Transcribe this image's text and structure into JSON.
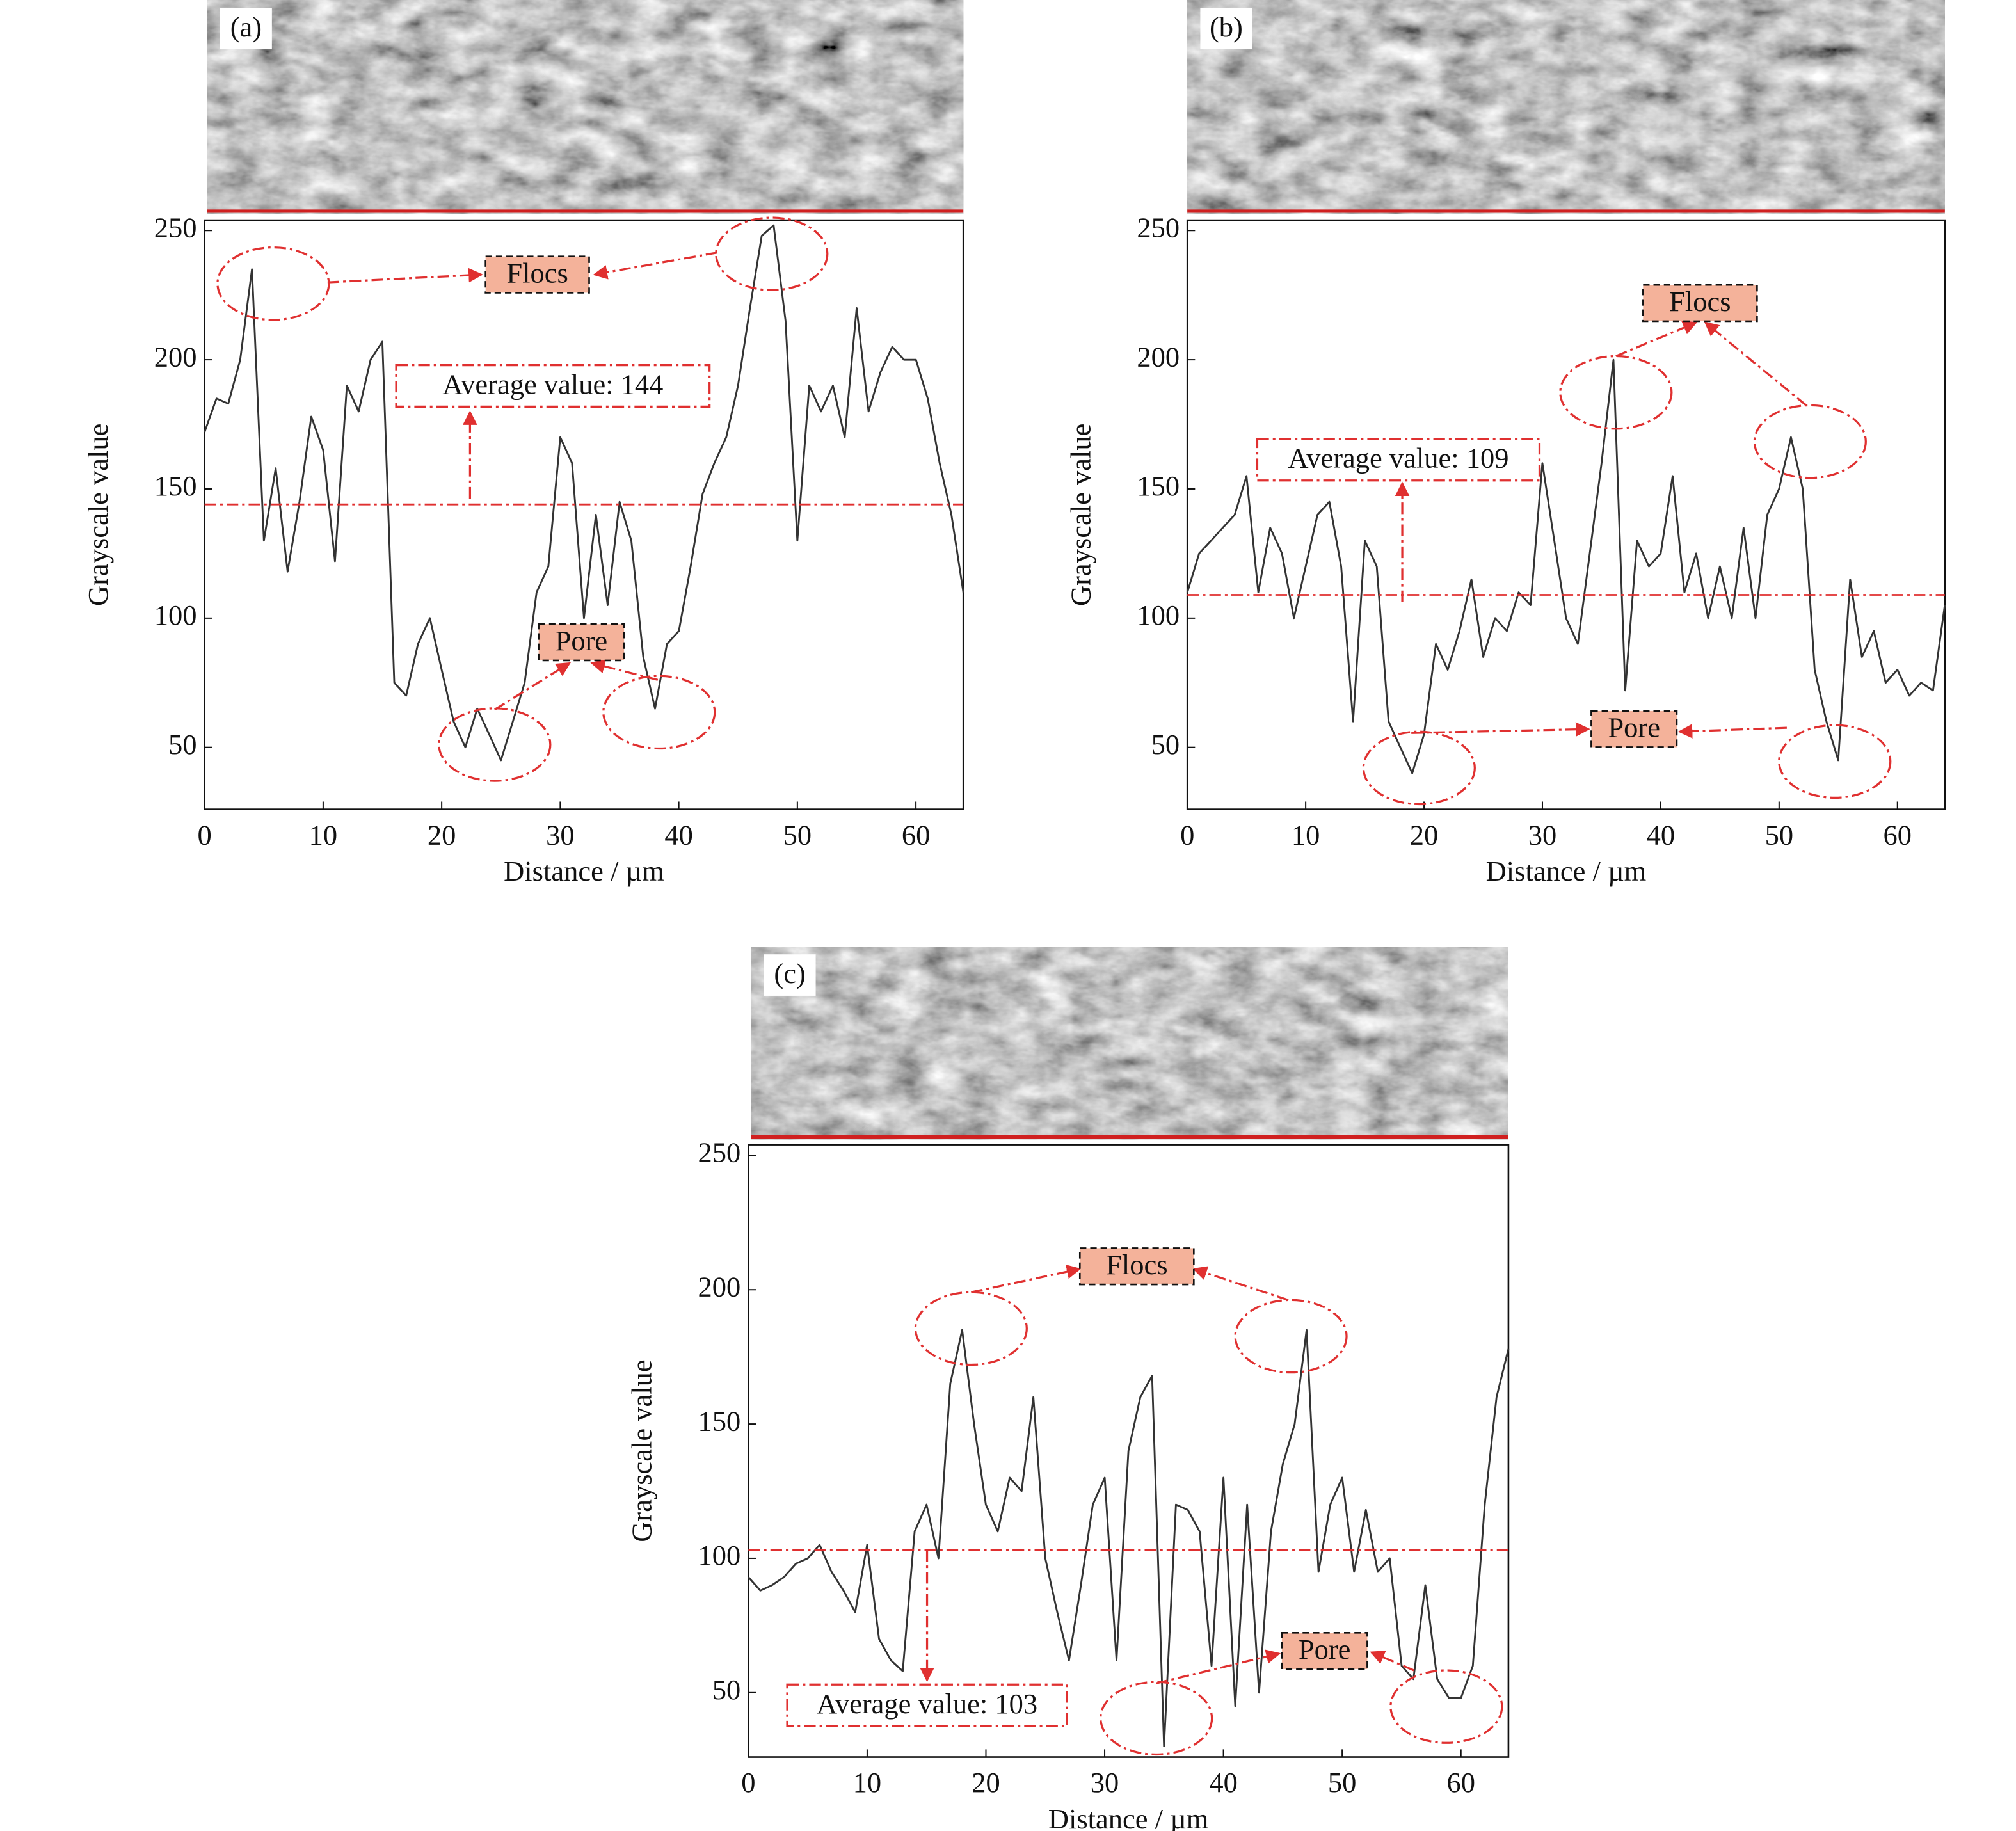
{
  "chart_data": [
    {
      "type": "line",
      "label": "(a)",
      "xlabel": "Distance / µm",
      "ylabel": "Grayscale value",
      "xlim": [
        0,
        64
      ],
      "ylim": [
        26,
        254
      ],
      "xticks": [
        0,
        10,
        20,
        30,
        40,
        50,
        60
      ],
      "yticks": [
        50,
        100,
        150,
        200,
        250
      ],
      "color": "#333333",
      "average_line": 144,
      "average_color": "#e03030",
      "annotations": [
        "Flocs",
        "Pore",
        "Average value: 144"
      ],
      "x": [
        0,
        1,
        2,
        3,
        4,
        5,
        6,
        7,
        8,
        9,
        10,
        11,
        12,
        13,
        14,
        15,
        16,
        17,
        18,
        19,
        20,
        21,
        22,
        23,
        24,
        25,
        26,
        27,
        28,
        29,
        30,
        31,
        32,
        33,
        34,
        35,
        36,
        37,
        38,
        39,
        40,
        41,
        42,
        43,
        44,
        45,
        46,
        47,
        48,
        49,
        50,
        51,
        52,
        53,
        54,
        55,
        56,
        57,
        58,
        59,
        60,
        61,
        62,
        63,
        64
      ],
      "values": [
        172,
        185,
        183,
        200,
        235,
        130,
        158,
        118,
        145,
        178,
        165,
        122,
        190,
        180,
        200,
        207,
        75,
        70,
        90,
        100,
        80,
        60,
        50,
        65,
        55,
        45,
        60,
        75,
        110,
        120,
        170,
        160,
        100,
        140,
        105,
        145,
        130,
        85,
        65,
        90,
        95,
        120,
        148,
        160,
        170,
        190,
        220,
        248,
        252,
        215,
        130,
        190,
        180,
        190,
        170,
        220,
        180,
        195,
        205,
        200,
        200,
        185,
        160,
        140,
        110
      ]
    },
    {
      "type": "line",
      "label": "(b)",
      "xlabel": "Distance / µm",
      "ylabel": "Grayscale value",
      "xlim": [
        0,
        64
      ],
      "ylim": [
        26,
        254
      ],
      "xticks": [
        0,
        10,
        20,
        30,
        40,
        50,
        60
      ],
      "yticks": [
        50,
        100,
        150,
        200,
        250
      ],
      "color": "#333333",
      "average_line": 109,
      "average_color": "#e03030",
      "annotations": [
        "Flocs",
        "Pore",
        "Average value: 109"
      ],
      "x": [
        0,
        1,
        2,
        3,
        4,
        5,
        6,
        7,
        8,
        9,
        10,
        11,
        12,
        13,
        14,
        15,
        16,
        17,
        18,
        19,
        20,
        21,
        22,
        23,
        24,
        25,
        26,
        27,
        28,
        29,
        30,
        31,
        32,
        33,
        34,
        35,
        36,
        37,
        38,
        39,
        40,
        41,
        42,
        43,
        44,
        45,
        46,
        47,
        48,
        49,
        50,
        51,
        52,
        53,
        54,
        55,
        56,
        57,
        58,
        59,
        60,
        61,
        62,
        63,
        64
      ],
      "values": [
        110,
        125,
        130,
        135,
        140,
        155,
        110,
        135,
        125,
        100,
        120,
        140,
        145,
        120,
        60,
        130,
        120,
        60,
        50,
        40,
        55,
        90,
        80,
        95,
        115,
        85,
        100,
        95,
        110,
        105,
        160,
        130,
        100,
        90,
        125,
        160,
        200,
        72,
        130,
        120,
        125,
        155,
        110,
        125,
        100,
        120,
        100,
        135,
        100,
        140,
        150,
        170,
        150,
        80,
        60,
        45,
        115,
        85,
        95,
        75,
        80,
        70,
        75,
        72,
        105
      ]
    },
    {
      "type": "line",
      "label": "(c)",
      "xlabel": "Distance / µm",
      "ylabel": "Grayscale value",
      "xlim": [
        0,
        64
      ],
      "ylim": [
        26,
        254
      ],
      "xticks": [
        0,
        10,
        20,
        30,
        40,
        50,
        60
      ],
      "yticks": [
        50,
        100,
        150,
        200,
        250
      ],
      "color": "#333333",
      "average_line": 103,
      "average_color": "#e03030",
      "annotations": [
        "Flocs",
        "Pore",
        "Average value: 103"
      ],
      "x": [
        0,
        1,
        2,
        3,
        4,
        5,
        6,
        7,
        8,
        9,
        10,
        11,
        12,
        13,
        14,
        15,
        16,
        17,
        18,
        19,
        20,
        21,
        22,
        23,
        24,
        25,
        26,
        27,
        28,
        29,
        30,
        31,
        32,
        33,
        34,
        35,
        36,
        37,
        38,
        39,
        40,
        41,
        42,
        43,
        44,
        45,
        46,
        47,
        48,
        49,
        50,
        51,
        52,
        53,
        54,
        55,
        56,
        57,
        58,
        59,
        60,
        61,
        62,
        63,
        64
      ],
      "values": [
        93,
        88,
        90,
        93,
        98,
        100,
        105,
        95,
        88,
        80,
        105,
        70,
        62,
        58,
        110,
        120,
        100,
        165,
        185,
        150,
        120,
        110,
        130,
        125,
        160,
        100,
        80,
        62,
        90,
        120,
        130,
        62,
        140,
        160,
        168,
        30,
        120,
        118,
        110,
        60,
        130,
        45,
        120,
        50,
        110,
        135,
        150,
        185,
        95,
        120,
        130,
        95,
        118,
        95,
        100,
        60,
        55,
        90,
        55,
        48,
        48,
        60,
        120,
        160,
        178
      ]
    }
  ]
}
